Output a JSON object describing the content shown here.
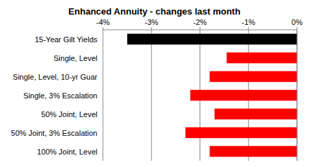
{
  "chart_data": {
    "type": "bar",
    "orientation": "horizontal",
    "title": "Enhanced Annuity - changes last month",
    "categories": [
      "15-Year Gilt Yields",
      "Single, Level",
      "Single, Level, 10-yr Guar",
      "Single, 3% Escalation",
      "50% Joint, Level",
      "50% Joint, 3% Escalation",
      "100% Joint, Level"
    ],
    "values": [
      -3.5,
      -1.45,
      -1.8,
      -2.2,
      -1.7,
      -2.3,
      -1.8
    ],
    "colors": [
      "#000000",
      "#ff0000",
      "#ff0000",
      "#ff0000",
      "#ff0000",
      "#ff0000",
      "#ff0000"
    ],
    "xlim": [
      -4,
      0
    ],
    "xticks": [
      {
        "value": -4,
        "label": "-4%"
      },
      {
        "value": -3,
        "label": "-3%"
      },
      {
        "value": -2,
        "label": "-2%"
      },
      {
        "value": -1,
        "label": "-1%"
      },
      {
        "value": 0,
        "label": "0%"
      }
    ],
    "grid": true
  }
}
